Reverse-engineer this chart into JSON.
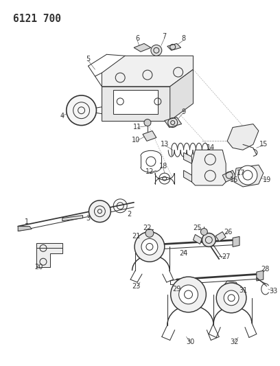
{
  "title": "6121 700",
  "bg_color": "#ffffff",
  "line_color": "#333333",
  "title_fontsize": 10.5,
  "label_fontsize": 7,
  "figsize": [
    4.08,
    5.33
  ],
  "dpi": 100
}
